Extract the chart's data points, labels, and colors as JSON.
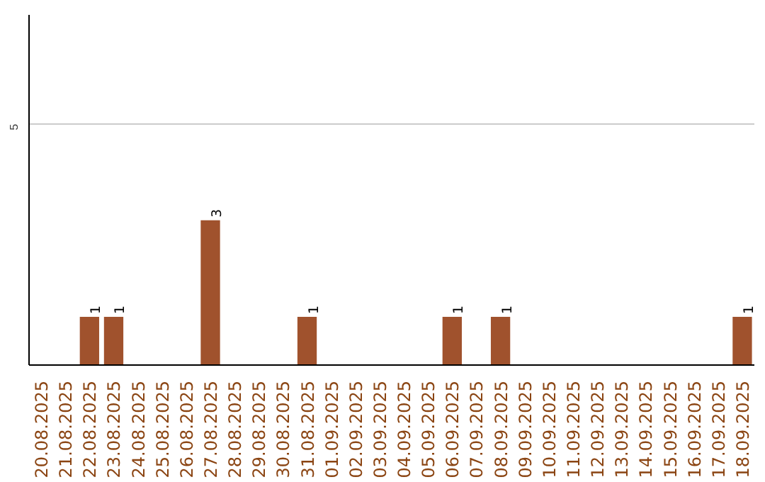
{
  "chart_data": {
    "type": "bar",
    "categories": [
      "20.08.2025",
      "21.08.2025",
      "22.08.2025",
      "23.08.2025",
      "24.08.2025",
      "25.08.2025",
      "26.08.2025",
      "27.08.2025",
      "28.08.2025",
      "29.08.2025",
      "30.08.2025",
      "31.08.2025",
      "01.09.2025",
      "02.09.2025",
      "03.09.2025",
      "04.09.2025",
      "05.09.2025",
      "06.09.2025",
      "07.09.2025",
      "08.09.2025",
      "09.09.2025",
      "10.09.2025",
      "11.09.2025",
      "12.09.2025",
      "13.09.2025",
      "14.09.2025",
      "15.09.2025",
      "16.09.2025",
      "17.09.2025",
      "18.09.2025"
    ],
    "values": [
      0,
      0,
      1,
      1,
      0,
      0,
      0,
      3,
      0,
      0,
      0,
      1,
      0,
      0,
      0,
      0,
      0,
      1,
      0,
      1,
      0,
      0,
      0,
      0,
      0,
      0,
      0,
      0,
      0,
      1
    ],
    "value_labels": [
      null,
      null,
      "1",
      "1",
      null,
      null,
      null,
      "3",
      null,
      null,
      null,
      "1",
      null,
      null,
      null,
      null,
      null,
      "1",
      null,
      "1",
      null,
      null,
      null,
      null,
      null,
      null,
      null,
      null,
      null,
      "1"
    ],
    "color": "#a0522d",
    "ylim": [
      0,
      7.26
    ],
    "yticks": [
      5
    ],
    "grid": "y"
  }
}
